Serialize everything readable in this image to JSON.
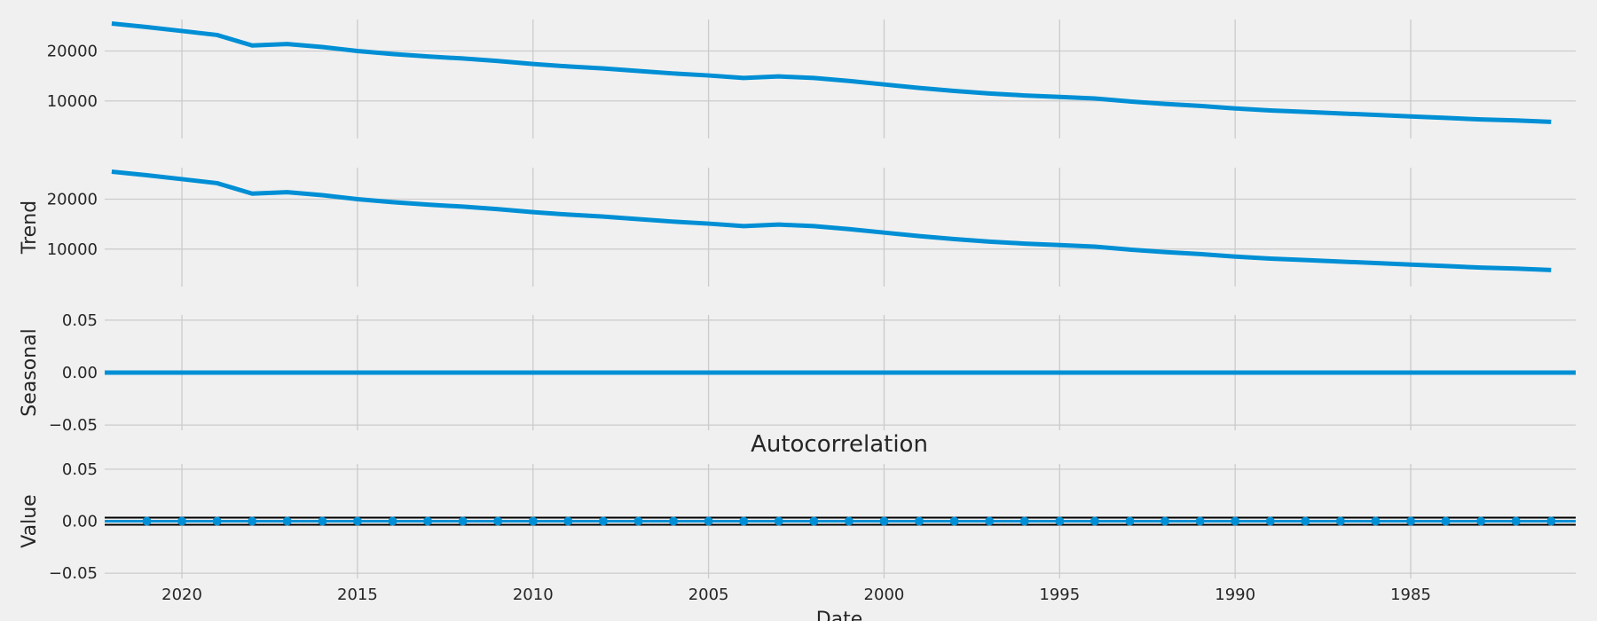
{
  "chart_data": {
    "type": "line",
    "shared_x": {
      "label": "Date",
      "ticks": [
        2020,
        2015,
        2010,
        2005,
        2000,
        1995,
        1990,
        1985
      ],
      "tick_labels": [
        "2020",
        "2015",
        "2010",
        "2005",
        "2000",
        "1995",
        "1990",
        "1985"
      ],
      "xlim": [
        2022.2,
        1980.3
      ],
      "reversed": true
    },
    "x": [
      2022,
      2021,
      2020,
      2019,
      2018,
      2017,
      2016,
      2015,
      2014,
      2013,
      2012,
      2011,
      2010,
      2009,
      2008,
      2007,
      2006,
      2005,
      2004,
      2003,
      2002,
      2001,
      2000,
      1999,
      1998,
      1997,
      1996,
      1995,
      1994,
      1993,
      1992,
      1991,
      1990,
      1989,
      1988,
      1987,
      1986,
      1985,
      1984,
      1983,
      1982,
      1981
    ],
    "panels": [
      {
        "id": "observed",
        "kind": "line",
        "ylabel": "",
        "ylim": [
          2500,
          26300
        ],
        "yticks": [
          10000,
          20000
        ],
        "ytick_labels": [
          "10000",
          "20000"
        ],
        "color": "#008fd5",
        "values": [
          25500,
          24800,
          24000,
          23200,
          21100,
          21400,
          20800,
          20000,
          19400,
          18900,
          18500,
          18000,
          17400,
          16900,
          16500,
          16000,
          15500,
          15100,
          14600,
          14900,
          14600,
          14000,
          13300,
          12600,
          12000,
          11500,
          11100,
          10800,
          10500,
          9900,
          9400,
          9000,
          8500,
          8100,
          7800,
          7500,
          7200,
          6900,
          6600,
          6300,
          6100,
          5800
        ]
      },
      {
        "id": "trend",
        "kind": "line",
        "ylabel": "Trend",
        "ylim": [
          2500,
          26300
        ],
        "yticks": [
          10000,
          20000
        ],
        "ytick_labels": [
          "10000",
          "20000"
        ],
        "color": "#008fd5",
        "values": [
          25500,
          24800,
          24000,
          23200,
          21100,
          21400,
          20800,
          20000,
          19400,
          18900,
          18500,
          18000,
          17400,
          16900,
          16500,
          16000,
          15500,
          15100,
          14600,
          14900,
          14600,
          14000,
          13300,
          12600,
          12000,
          11500,
          11100,
          10800,
          10500,
          9900,
          9400,
          9000,
          8500,
          8100,
          7800,
          7500,
          7200,
          6900,
          6600,
          6300,
          6100,
          5800
        ]
      },
      {
        "id": "seasonal",
        "kind": "line",
        "ylabel": "Seasonal",
        "ylim": [
          -0.055,
          0.055
        ],
        "yticks": [
          -0.05,
          0.0,
          0.05
        ],
        "ytick_labels": [
          "−0.05",
          "0.00",
          "0.05"
        ],
        "color": "#008fd5",
        "constant": 0.0
      },
      {
        "id": "autocorrelation",
        "kind": "scatter",
        "title": "Autocorrelation",
        "ylabel": "Value",
        "ylim": [
          -0.055,
          0.055
        ],
        "yticks": [
          -0.05,
          0.0,
          0.05
        ],
        "ytick_labels": [
          "−0.05",
          "0.00",
          "0.05"
        ],
        "color": "#008fd5",
        "reference_line_color": "#000000",
        "x": [
          2021,
          2020,
          2019,
          2018,
          2017,
          2016,
          2015,
          2014,
          2013,
          2012,
          2011,
          2010,
          2009,
          2008,
          2007,
          2006,
          2005,
          2004,
          2003,
          2002,
          2001,
          2000,
          1999,
          1998,
          1997,
          1996,
          1995,
          1994,
          1993,
          1992,
          1991,
          1990,
          1989,
          1988,
          1987,
          1986,
          1985,
          1984,
          1983,
          1982,
          1981
        ],
        "values": 0.0
      }
    ],
    "grid": true
  }
}
